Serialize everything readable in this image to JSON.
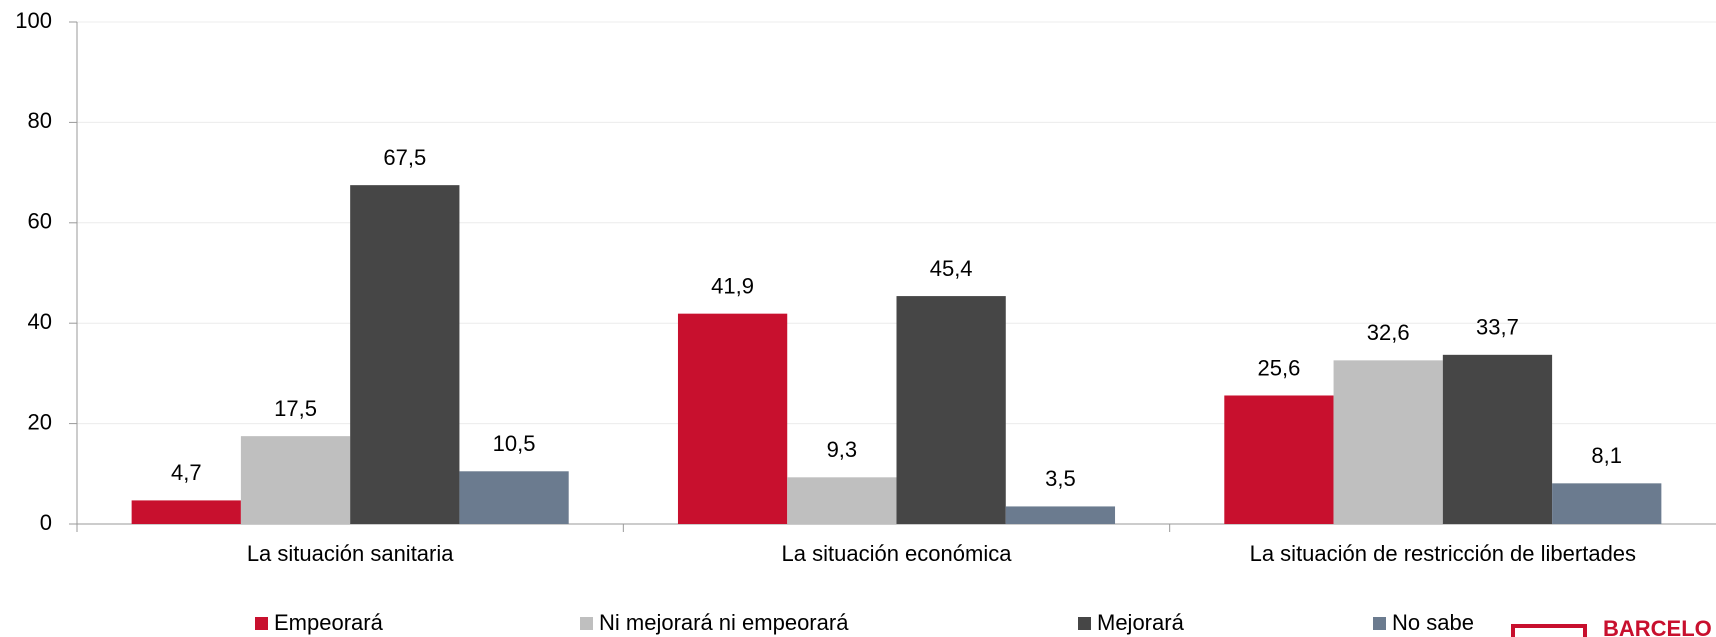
{
  "chart_data": {
    "type": "bar",
    "categories": [
      "La situación sanitaria",
      "La situación económica",
      "La situación de restricción de libertades"
    ],
    "series": [
      {
        "name": "Empeorará",
        "color": "#c8102e",
        "values": [
          4.7,
          41.9,
          25.6
        ],
        "value_labels": [
          "4,7",
          "41,9",
          "25,6"
        ]
      },
      {
        "name": "Ni mejorará ni empeorará",
        "color": "#bfbfbf",
        "values": [
          17.5,
          9.3,
          32.6
        ],
        "value_labels": [
          "17,5",
          "9,3",
          "32,6"
        ]
      },
      {
        "name": "Mejorará",
        "color": "#464646",
        "values": [
          67.5,
          45.4,
          33.7
        ],
        "value_labels": [
          "67,5",
          "45,4",
          "33,7"
        ]
      },
      {
        "name": "No sabe",
        "color": "#6b7b8f",
        "values": [
          10.5,
          3.5,
          8.1
        ],
        "value_labels": [
          "10,5",
          "3,5",
          "8,1"
        ]
      }
    ],
    "ylim": [
      0,
      100
    ],
    "yticks": [
      0,
      20,
      40,
      60,
      80,
      100
    ],
    "grid": true,
    "legend": "bottom",
    "logo": "BARCELO"
  }
}
